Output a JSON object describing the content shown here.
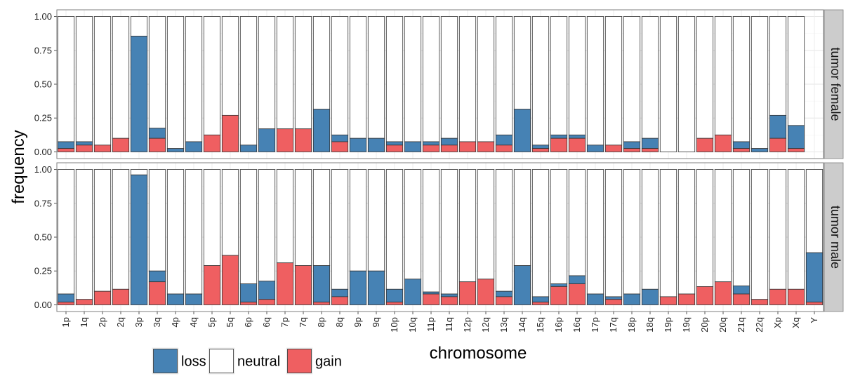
{
  "chart_data": {
    "type": "bar",
    "stacked": true,
    "xlabel": "chromosome",
    "ylabel": "frequency",
    "ylim": [
      0,
      1
    ],
    "yticks": [
      "0.00",
      "0.25",
      "0.50",
      "0.75",
      "1.00"
    ],
    "grid": true,
    "legend_position": "bottom-left",
    "colors": {
      "loss": "#4682b4",
      "neutral": "#ffffff",
      "gain": "#ef5f61"
    },
    "legend": [
      {
        "key": "loss",
        "label": "loss"
      },
      {
        "key": "neutral",
        "label": "neutral"
      },
      {
        "key": "gain",
        "label": "gain"
      }
    ],
    "categories": [
      "1p",
      "1q",
      "2p",
      "2q",
      "3p",
      "3q",
      "4p",
      "4q",
      "5p",
      "5q",
      "6p",
      "6q",
      "7p",
      "7q",
      "8p",
      "8q",
      "9p",
      "9q",
      "10p",
      "10q",
      "11p",
      "11q",
      "12p",
      "12q",
      "13q",
      "14q",
      "15q",
      "16p",
      "16q",
      "17p",
      "17q",
      "18p",
      "18q",
      "19p",
      "19q",
      "20p",
      "20q",
      "21q",
      "22q",
      "Xp",
      "Xq",
      "Y"
    ],
    "panels": [
      {
        "label": "tumor female",
        "categories": [
          "1p",
          "1q",
          "2p",
          "2q",
          "3p",
          "3q",
          "4p",
          "4q",
          "5p",
          "5q",
          "6p",
          "6q",
          "7p",
          "7q",
          "8p",
          "8q",
          "9p",
          "9q",
          "10p",
          "10q",
          "11p",
          "11q",
          "12p",
          "12q",
          "13q",
          "14q",
          "15q",
          "16p",
          "16q",
          "17p",
          "17q",
          "18p",
          "18q",
          "19p",
          "19q",
          "20p",
          "20q",
          "21q",
          "22q",
          "Xp",
          "Xq"
        ],
        "gain": [
          0.025,
          0.05,
          0.05,
          0.1,
          0,
          0.1,
          0,
          0,
          0.125,
          0.27,
          0,
          0,
          0.17,
          0.17,
          0,
          0.075,
          0,
          0,
          0.05,
          0,
          0.05,
          0.05,
          0.075,
          0.075,
          0.05,
          0,
          0.025,
          0.1,
          0.1,
          0,
          0.05,
          0.025,
          0.025,
          0,
          0,
          0.1,
          0.125,
          0.025,
          0,
          0.1,
          0.025
        ],
        "loss": [
          0.05,
          0.025,
          0,
          0,
          0.855,
          0.075,
          0.025,
          0.075,
          0,
          0,
          0.05,
          0.17,
          0,
          0,
          0.315,
          0.05,
          0.1,
          0.1,
          0.025,
          0.075,
          0.025,
          0.05,
          0,
          0,
          0.075,
          0.315,
          0.025,
          0.025,
          0.025,
          0.05,
          0,
          0.05,
          0.075,
          0,
          0,
          0,
          0,
          0.05,
          0.025,
          0.17,
          0.17
        ]
      },
      {
        "label": "tumor male",
        "categories": [
          "1p",
          "1q",
          "2p",
          "2q",
          "3p",
          "3q",
          "4p",
          "4q",
          "5p",
          "5q",
          "6p",
          "6q",
          "7p",
          "7q",
          "8p",
          "8q",
          "9p",
          "9q",
          "10p",
          "10q",
          "11p",
          "11q",
          "12p",
          "12q",
          "13q",
          "14q",
          "15q",
          "16p",
          "16q",
          "17p",
          "17q",
          "18p",
          "18q",
          "19p",
          "19q",
          "20p",
          "20q",
          "21q",
          "22q",
          "Xp",
          "Xq",
          "Y"
        ],
        "gain": [
          0.02,
          0.04,
          0.1,
          0.115,
          0,
          0.17,
          0,
          0,
          0.29,
          0.365,
          0.02,
          0.04,
          0.31,
          0.29,
          0.02,
          0.06,
          0,
          0,
          0.02,
          0,
          0.08,
          0.06,
          0.17,
          0.19,
          0.06,
          0,
          0.02,
          0.135,
          0.155,
          0,
          0.04,
          0,
          0,
          0.06,
          0.08,
          0.135,
          0.17,
          0.08,
          0.04,
          0.115,
          0.115,
          0.02
        ],
        "loss": [
          0.06,
          0,
          0,
          0,
          0.96,
          0.08,
          0.08,
          0.08,
          0,
          0,
          0.135,
          0.135,
          0,
          0,
          0.27,
          0.055,
          0.25,
          0.25,
          0.095,
          0.19,
          0.015,
          0.02,
          0,
          0,
          0.04,
          0.29,
          0.04,
          0.02,
          0.06,
          0.08,
          0.02,
          0.08,
          0.115,
          0,
          0,
          0,
          0,
          0.06,
          0,
          0,
          0,
          0.365
        ]
      }
    ]
  }
}
